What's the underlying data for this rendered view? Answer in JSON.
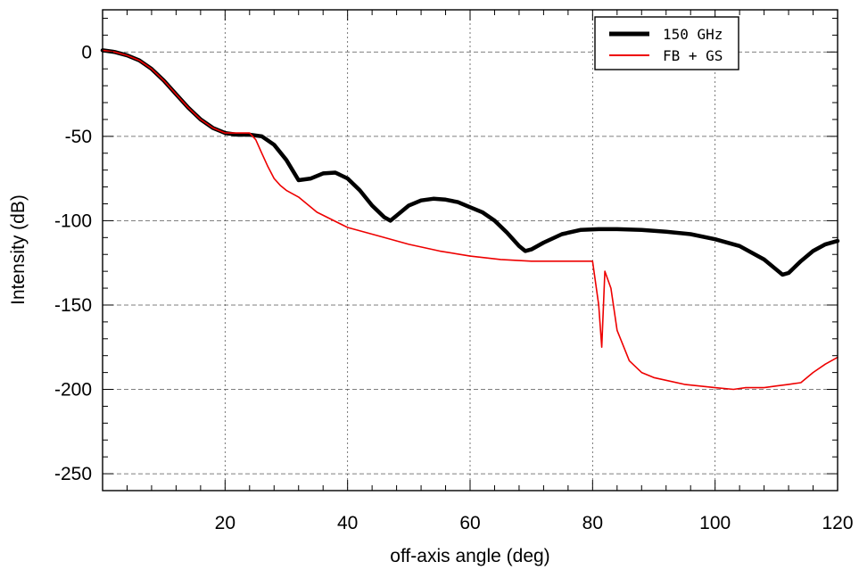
{
  "chart_data": {
    "type": "line",
    "xlabel": "off-axis angle (deg)",
    "ylabel": "Intensity (dB)",
    "xlim": [
      0,
      120
    ],
    "ylim": [
      -260,
      25
    ],
    "x_ticks": [
      20,
      40,
      60,
      80,
      100,
      120
    ],
    "y_ticks": [
      0,
      -50,
      -100,
      -150,
      -200,
      -250
    ],
    "grid": true,
    "legend_position": "top-right",
    "colors": {
      "series_0": "#000000",
      "series_1": "#ee0000"
    },
    "series": [
      {
        "name": "150 GHz",
        "color": "#000000",
        "x": [
          0,
          2,
          4,
          6,
          8,
          10,
          12,
          14,
          16,
          18,
          20,
          22,
          24,
          26,
          28,
          30,
          32,
          34,
          36,
          38,
          40,
          42,
          44,
          46,
          47,
          48,
          50,
          52,
          54,
          56,
          58,
          60,
          62,
          64,
          66,
          68,
          69,
          70,
          72,
          75,
          78,
          81,
          84,
          88,
          92,
          96,
          100,
          104,
          108,
          110,
          111,
          112,
          114,
          116,
          118,
          120
        ],
        "y": [
          1,
          0,
          -2,
          -5,
          -10,
          -17,
          -25,
          -33,
          -40,
          -45,
          -48,
          -49,
          -49,
          -50,
          -55,
          -64,
          -76,
          -75,
          -72,
          -71.5,
          -75,
          -82,
          -91,
          -98,
          -100,
          -97,
          -91,
          -88,
          -87,
          -87.5,
          -89,
          -92,
          -95,
          -100,
          -107,
          -115,
          -118,
          -117,
          -113,
          -108,
          -105.5,
          -105,
          -105,
          -105.5,
          -106.5,
          -108,
          -111,
          -115,
          -123,
          -129,
          -132,
          -131,
          -124,
          -118,
          -114,
          -112
        ]
      },
      {
        "name": "FB + GS",
        "color": "#ee0000",
        "x": [
          0,
          2,
          4,
          6,
          8,
          10,
          12,
          14,
          16,
          18,
          20,
          22,
          24,
          25,
          26,
          27,
          28,
          29,
          30,
          32,
          35,
          40,
          45,
          50,
          55,
          60,
          65,
          70,
          75,
          80,
          81,
          81.5,
          82,
          83,
          84,
          86,
          88,
          90,
          95,
          100,
          103,
          105,
          108,
          110,
          112,
          114,
          116,
          118,
          120
        ],
        "y": [
          1,
          0,
          -2,
          -5,
          -10,
          -17,
          -25,
          -33,
          -40,
          -45,
          -48,
          -48,
          -48,
          -52,
          -60,
          -68,
          -75,
          -79,
          -82,
          -86,
          -95,
          -104,
          -109,
          -114,
          -118,
          -121,
          -123,
          -124,
          -124,
          -124,
          -150,
          -175,
          -130,
          -140,
          -165,
          -183,
          -190,
          -193,
          -197,
          -199,
          -200,
          -199,
          -199,
          -198,
          -197,
          -196,
          -190,
          -185,
          -181
        ]
      }
    ]
  }
}
